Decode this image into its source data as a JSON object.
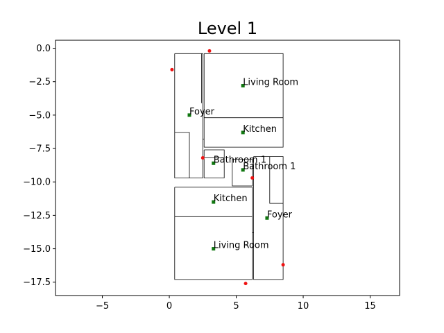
{
  "chart_data": {
    "type": "scatter",
    "title": "Level 1",
    "xlabel": "",
    "ylabel": "",
    "xlim": [
      -8.5,
      17.2
    ],
    "ylim": [
      -18.5,
      0.6
    ],
    "grid": false,
    "x_ticks": [
      {
        "value": -5,
        "label": "−5"
      },
      {
        "value": 0,
        "label": "0"
      },
      {
        "value": 5,
        "label": "5"
      },
      {
        "value": 10,
        "label": "10"
      },
      {
        "value": 15,
        "label": "15"
      }
    ],
    "y_ticks": [
      {
        "value": 0,
        "label": "0.0"
      },
      {
        "value": -2.5,
        "label": "−2.5"
      },
      {
        "value": -5,
        "label": "−5.0"
      },
      {
        "value": -7.5,
        "label": "−7.5"
      },
      {
        "value": -10,
        "label": "−10.0"
      },
      {
        "value": -12.5,
        "label": "−12.5"
      },
      {
        "value": -15,
        "label": "−15.0"
      },
      {
        "value": -17.5,
        "label": "−17.5"
      }
    ],
    "colors": {
      "room_point": "#117711",
      "door_point": "#ee1111",
      "walls": "#000000"
    },
    "rooms": [
      {
        "name": "Living Room",
        "x": 5.5,
        "y": -2.8
      },
      {
        "name": "Foyer",
        "x": 1.5,
        "y": -5.0
      },
      {
        "name": "Kitchen",
        "x": 5.5,
        "y": -6.3
      },
      {
        "name": "Bathroom 1",
        "x": 3.3,
        "y": -8.6
      },
      {
        "name": "Bathroom 1",
        "x": 5.5,
        "y": -9.1
      },
      {
        "name": "Kitchen",
        "x": 3.3,
        "y": -11.5
      },
      {
        "name": "Foyer",
        "x": 7.3,
        "y": -12.7
      },
      {
        "name": "Living Room",
        "x": 3.3,
        "y": -15.0
      }
    ],
    "doors": [
      {
        "x": 3.0,
        "y": -0.2
      },
      {
        "x": 0.2,
        "y": -1.6
      },
      {
        "x": 2.5,
        "y": -8.2
      },
      {
        "x": 6.2,
        "y": -9.7
      },
      {
        "x": 8.5,
        "y": -16.2
      },
      {
        "x": 5.7,
        "y": -17.6
      }
    ],
    "walls": [
      [
        [
          0.4,
          -0.4
        ],
        [
          2.5,
          -0.4
        ],
        [
          2.5,
          -9.7
        ],
        [
          0.4,
          -9.7
        ],
        [
          0.4,
          -0.4
        ]
      ],
      [
        [
          0.4,
          -6.3
        ],
        [
          1.5,
          -6.3
        ],
        [
          1.5,
          -9.7
        ]
      ],
      [
        [
          2.4,
          -0.4
        ],
        [
          2.4,
          -4.1
        ]
      ],
      [
        [
          2.5,
          -4.9
        ],
        [
          2.6,
          -4.9
        ]
      ],
      [
        [
          2.5,
          -6.8
        ],
        [
          2.6,
          -6.8
        ]
      ],
      [
        [
          2.6,
          -0.4
        ],
        [
          8.5,
          -0.4
        ],
        [
          8.5,
          -7.4
        ],
        [
          2.6,
          -7.4
        ],
        [
          2.6,
          -0.4
        ]
      ],
      [
        [
          2.6,
          -5.2
        ],
        [
          8.5,
          -5.2
        ]
      ],
      [
        [
          2.6,
          -7.6
        ],
        [
          4.1,
          -7.6
        ],
        [
          4.1,
          -9.7
        ],
        [
          2.6,
          -9.7
        ],
        [
          2.6,
          -7.6
        ]
      ],
      [
        [
          2.6,
          -8.2
        ],
        [
          4.1,
          -8.2
        ]
      ],
      [
        [
          4.7,
          -8.3
        ],
        [
          6.2,
          -8.3
        ],
        [
          6.2,
          -10.3
        ],
        [
          4.7,
          -10.3
        ],
        [
          4.7,
          -8.3
        ]
      ],
      [
        [
          6.3,
          -8.1
        ],
        [
          8.5,
          -8.1
        ],
        [
          8.5,
          -17.3
        ],
        [
          6.3,
          -17.3
        ],
        [
          6.3,
          -8.1
        ]
      ],
      [
        [
          7.5,
          -8.1
        ],
        [
          7.5,
          -11.6
        ],
        [
          8.5,
          -11.6
        ]
      ],
      [
        [
          0.4,
          -10.4
        ],
        [
          6.2,
          -10.4
        ],
        [
          6.2,
          -17.3
        ],
        [
          0.4,
          -17.3
        ],
        [
          0.4,
          -10.4
        ]
      ],
      [
        [
          0.4,
          -12.6
        ],
        [
          6.2,
          -12.6
        ]
      ],
      [
        [
          6.2,
          -13.8
        ],
        [
          6.3,
          -13.8
        ]
      ]
    ]
  }
}
